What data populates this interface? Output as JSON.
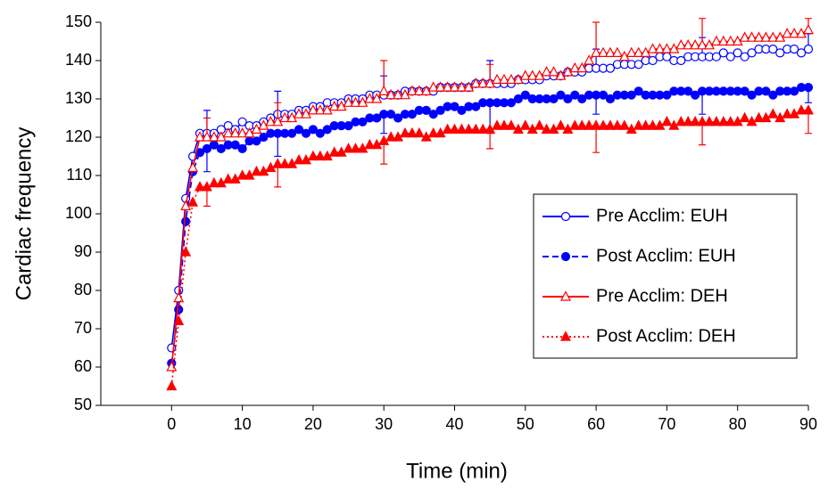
{
  "chart_data": {
    "type": "line",
    "x_label": "Time (min)",
    "y_label": "Cardiac frequency",
    "x": [
      0,
      1,
      2,
      3,
      4,
      5,
      6,
      7,
      8,
      9,
      10,
      11,
      12,
      13,
      14,
      15,
      16,
      17,
      18,
      19,
      20,
      21,
      22,
      23,
      24,
      25,
      26,
      27,
      28,
      29,
      30,
      31,
      32,
      33,
      34,
      35,
      36,
      37,
      38,
      39,
      40,
      41,
      42,
      43,
      44,
      45,
      46,
      47,
      48,
      49,
      50,
      51,
      52,
      53,
      54,
      55,
      56,
      57,
      58,
      59,
      60,
      61,
      62,
      63,
      64,
      65,
      66,
      67,
      68,
      69,
      70,
      71,
      72,
      73,
      74,
      75,
      76,
      77,
      78,
      79,
      80,
      81,
      82,
      83,
      84,
      85,
      86,
      87,
      88,
      89,
      90
    ],
    "xlim": [
      -10,
      90
    ],
    "xticks": [
      0,
      10,
      20,
      30,
      40,
      50,
      60,
      70,
      80,
      90
    ],
    "ylim": [
      50,
      150
    ],
    "yticks": [
      50,
      60,
      70,
      80,
      90,
      100,
      110,
      120,
      130,
      140,
      150
    ],
    "legend_position": "right",
    "error_x": [
      5,
      15,
      30,
      45,
      60,
      75,
      90
    ],
    "series": [
      {
        "name": "Pre Acclim: EUH",
        "color": "#0000ff",
        "dash": "solid",
        "marker": "circle",
        "filled": false,
        "error_direction": "up",
        "errors": [
          6,
          6,
          5,
          6,
          5,
          5,
          4
        ],
        "values": [
          65,
          80,
          104,
          115,
          121,
          121,
          121,
          122,
          123,
          122,
          124,
          123,
          123,
          124,
          125,
          126,
          126,
          126,
          127,
          127,
          128,
          128,
          129,
          129,
          129,
          130,
          130,
          130,
          131,
          131,
          131,
          131,
          131,
          132,
          132,
          132,
          132,
          132,
          133,
          133,
          133,
          133,
          133,
          134,
          134,
          134,
          134,
          134,
          134,
          135,
          135,
          135,
          135,
          136,
          136,
          136,
          137,
          137,
          137,
          138,
          138,
          138,
          138,
          139,
          139,
          139,
          139,
          140,
          140,
          141,
          141,
          140,
          140,
          141,
          141,
          141,
          141,
          141,
          142,
          141,
          142,
          141,
          142,
          143,
          143,
          143,
          142,
          143,
          143,
          142,
          143
        ]
      },
      {
        "name": "Post Acclim: EUH",
        "color": "#0000ff",
        "dash": "dashed",
        "marker": "circle",
        "filled": true,
        "error_direction": "down",
        "errors": [
          6,
          6,
          5,
          8,
          5,
          6,
          4
        ],
        "values": [
          61,
          75,
          98,
          111,
          116,
          117,
          118,
          117,
          118,
          118,
          117,
          119,
          119,
          120,
          121,
          121,
          121,
          121,
          122,
          121,
          122,
          121,
          122,
          123,
          123,
          123,
          124,
          124,
          125,
          125,
          126,
          126,
          125,
          126,
          126,
          127,
          127,
          126,
          127,
          128,
          128,
          127,
          128,
          128,
          129,
          129,
          129,
          129,
          129,
          130,
          131,
          130,
          130,
          130,
          130,
          131,
          130,
          131,
          130,
          131,
          131,
          131,
          130,
          131,
          131,
          131,
          132,
          131,
          131,
          131,
          131,
          132,
          132,
          132,
          131,
          132,
          132,
          132,
          132,
          132,
          132,
          132,
          131,
          132,
          132,
          131,
          132,
          132,
          132,
          133,
          133
        ]
      },
      {
        "name": "Pre Acclim: DEH",
        "color": "#ff0000",
        "dash": "solid",
        "marker": "triangle",
        "filled": false,
        "error_direction": "up",
        "errors": [
          5,
          5,
          8,
          5,
          8,
          7,
          3
        ],
        "values": [
          60,
          78,
          102,
          112,
          120,
          120,
          120,
          120,
          121,
          121,
          121,
          121,
          122,
          123,
          124,
          124,
          125,
          125,
          126,
          126,
          127,
          127,
          127,
          128,
          128,
          129,
          129,
          129,
          130,
          130,
          132,
          131,
          131,
          131,
          132,
          132,
          132,
          133,
          133,
          133,
          133,
          133,
          133,
          134,
          134,
          134,
          135,
          135,
          135,
          135,
          136,
          136,
          136,
          137,
          137,
          136,
          137,
          138,
          138,
          140,
          142,
          142,
          142,
          142,
          141,
          142,
          142,
          142,
          143,
          143,
          143,
          143,
          144,
          144,
          144,
          144,
          144,
          145,
          145,
          145,
          145,
          146,
          146,
          146,
          146,
          146,
          146,
          147,
          147,
          147,
          148
        ]
      },
      {
        "name": "Post Acclim: DEH",
        "color": "#ff0000",
        "dash": "dotted",
        "marker": "triangle",
        "filled": true,
        "error_direction": "down",
        "errors": [
          5,
          6,
          6,
          5,
          7,
          6,
          6
        ],
        "values": [
          55,
          72,
          90,
          103,
          107,
          107,
          108,
          108,
          109,
          109,
          110,
          110,
          111,
          111,
          112,
          113,
          113,
          113,
          114,
          114,
          115,
          115,
          115,
          116,
          116,
          117,
          117,
          117,
          118,
          118,
          119,
          120,
          120,
          121,
          121,
          121,
          120,
          121,
          121,
          122,
          122,
          122,
          122,
          122,
          122,
          122,
          123,
          123,
          123,
          122,
          123,
          122,
          123,
          122,
          122,
          123,
          122,
          123,
          123,
          123,
          123,
          123,
          123,
          123,
          123,
          122,
          123,
          123,
          123,
          123,
          124,
          123,
          124,
          124,
          124,
          124,
          124,
          124,
          124,
          124,
          124,
          125,
          124,
          125,
          125,
          126,
          125,
          126,
          126,
          127,
          127
        ]
      }
    ]
  }
}
